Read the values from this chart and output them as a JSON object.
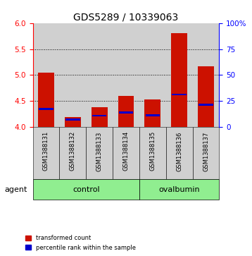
{
  "title": "GDS5289 / 10339063",
  "samples": [
    "GSM1388131",
    "GSM1388132",
    "GSM1388133",
    "GSM1388134",
    "GSM1388135",
    "GSM1388136",
    "GSM1388137"
  ],
  "red_bar_tops": [
    5.05,
    4.2,
    4.38,
    4.6,
    4.53,
    5.8,
    5.17
  ],
  "blue_marker_vals": [
    4.35,
    4.15,
    4.22,
    4.28,
    4.23,
    4.63,
    4.43
  ],
  "red_bar_bottom": 4.0,
  "ylim_left": [
    4.0,
    6.0
  ],
  "ylim_right": [
    0,
    100
  ],
  "yticks_left": [
    4.0,
    4.5,
    5.0,
    5.5,
    6.0
  ],
  "yticks_right": [
    0,
    25,
    50,
    75,
    100
  ],
  "ytick_labels_right": [
    "0",
    "25",
    "50",
    "75",
    "100%"
  ],
  "groups": [
    {
      "label": "control",
      "indices": [
        0,
        1,
        2,
        3
      ],
      "color": "#90EE90"
    },
    {
      "label": "ovalbumin",
      "indices": [
        4,
        5,
        6
      ],
      "color": "#90EE90"
    }
  ],
  "group_row_label": "agent",
  "bar_color": "#cc1100",
  "blue_color": "#0000cc",
  "bar_width": 0.6,
  "background_color": "#ffffff",
  "sample_area_color": "#d0d0d0",
  "legend_red_label": "transformed count",
  "legend_blue_label": "percentile rank within the sample",
  "title_fontsize": 10,
  "tick_fontsize": 7.5,
  "sample_fontsize": 6,
  "label_fontsize": 8
}
